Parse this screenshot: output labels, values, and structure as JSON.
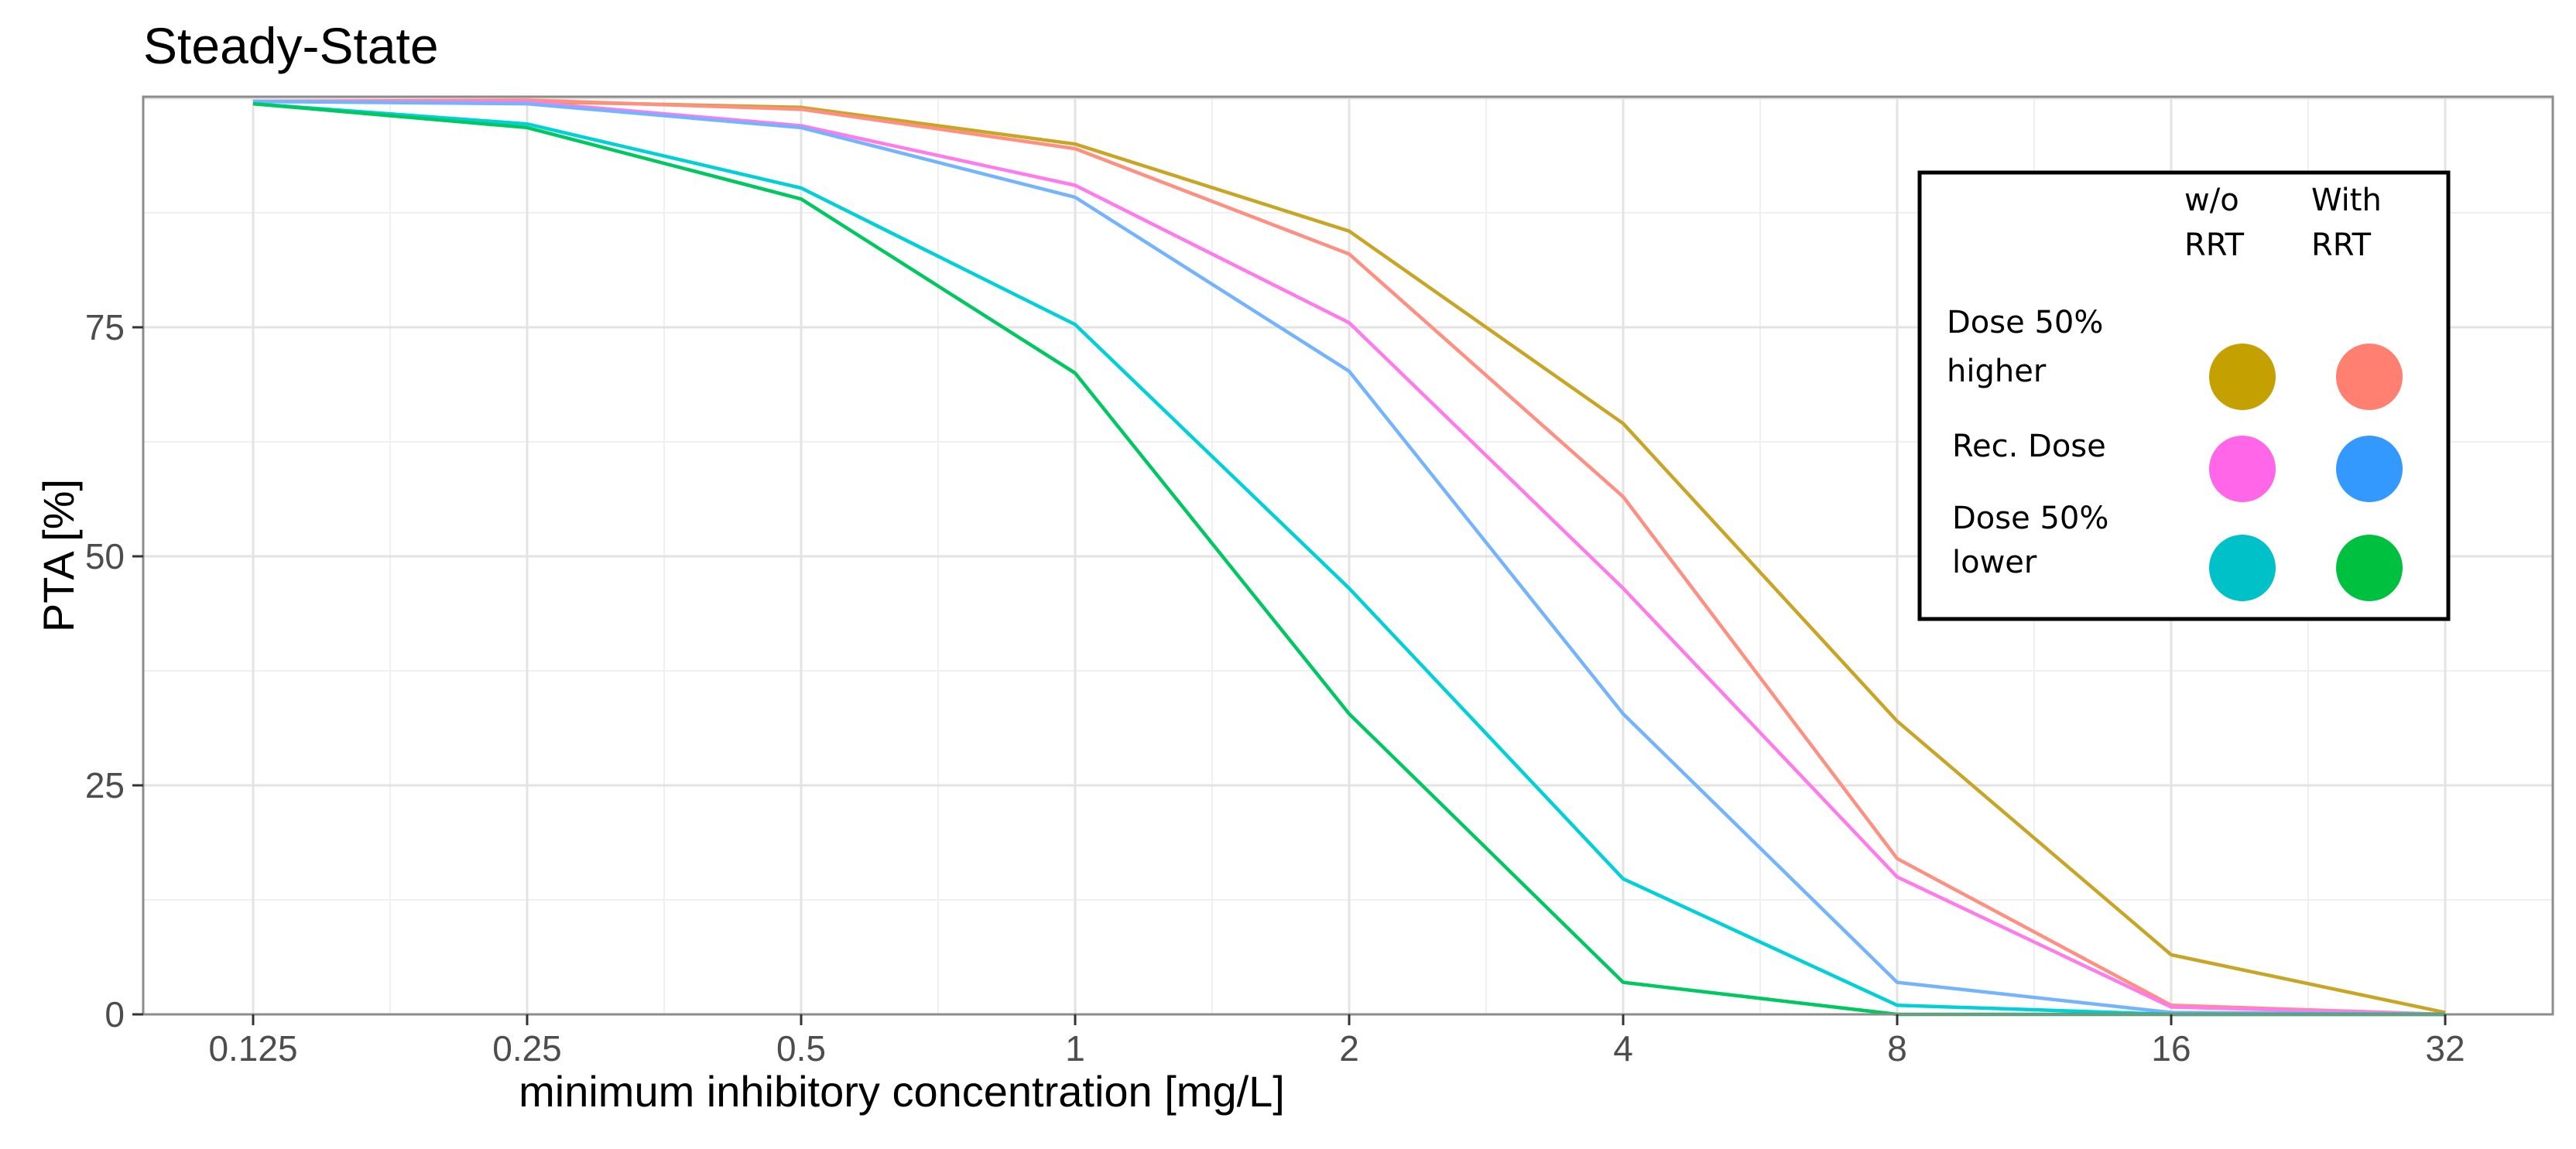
{
  "chart_data": {
    "type": "line",
    "title": "Steady-State",
    "xlabel": "minimum inhibitory concentration [mg/L]",
    "ylabel": "PTA [%]",
    "x": [
      "0.125",
      "0.25",
      "0.5",
      "1",
      "2",
      "4",
      "8",
      "16",
      "32"
    ],
    "x_scale": "log2",
    "ylim": [
      0,
      100
    ],
    "y_ticks": [
      0,
      25,
      50,
      75
    ],
    "grid": true,
    "legend_position": "top-right",
    "legend": {
      "col_headers": [
        "w/o\nRRT",
        "With\nRRT"
      ],
      "row_labels": [
        "Dose 50%\nhigher",
        "Rec. Dose",
        "Dose 50%\nlower"
      ],
      "entries": [
        {
          "row": 0,
          "col": 0,
          "series": "Dose 50% higher w/o RRT",
          "color": "#c4a000"
        },
        {
          "row": 0,
          "col": 1,
          "series": "Dose 50% higher with RRT",
          "color": "#ff7f70"
        },
        {
          "row": 1,
          "col": 0,
          "series": "Rec. Dose w/o RRT",
          "color": "#ff66e8"
        },
        {
          "row": 1,
          "col": 1,
          "series": "Rec. Dose with RRT",
          "color": "#3399ff"
        },
        {
          "row": 2,
          "col": 0,
          "series": "Dose 50% lower w/o RRT",
          "color": "#00c0c8"
        },
        {
          "row": 2,
          "col": 1,
          "series": "Dose 50% lower with RRT",
          "color": "#00c040"
        }
      ]
    },
    "series": [
      {
        "name": "Dose 50% higher w/o RRT",
        "color": "#c8a524",
        "values": [
          100,
          100,
          99,
          95,
          85.5,
          64.5,
          32,
          6.5,
          0.2
        ]
      },
      {
        "name": "Dose 50% higher with RRT",
        "color": "#ff8f80",
        "values": [
          100,
          99.8,
          98.8,
          94.5,
          83,
          56.5,
          17,
          1,
          0
        ]
      },
      {
        "name": "Rec. Dose w/o RRT",
        "color": "#ff7aea",
        "values": [
          100,
          99.6,
          97,
          90.5,
          75.5,
          46.5,
          15,
          0.8,
          0
        ]
      },
      {
        "name": "Rec. Dose with RRT",
        "color": "#74b4ff",
        "values": [
          100,
          99.4,
          96.8,
          89.2,
          70.2,
          32.8,
          3.5,
          0.2,
          0
        ]
      },
      {
        "name": "Dose 50% lower w/o RRT",
        "color": "#00d0d8",
        "values": [
          99.4,
          97.2,
          90.2,
          75.3,
          46.5,
          14.8,
          1,
          0,
          0
        ]
      },
      {
        "name": "Dose 50% lower with RRT",
        "color": "#00c860",
        "values": [
          99.4,
          96.8,
          89,
          70,
          32.8,
          3.5,
          0,
          0,
          0
        ]
      }
    ]
  }
}
